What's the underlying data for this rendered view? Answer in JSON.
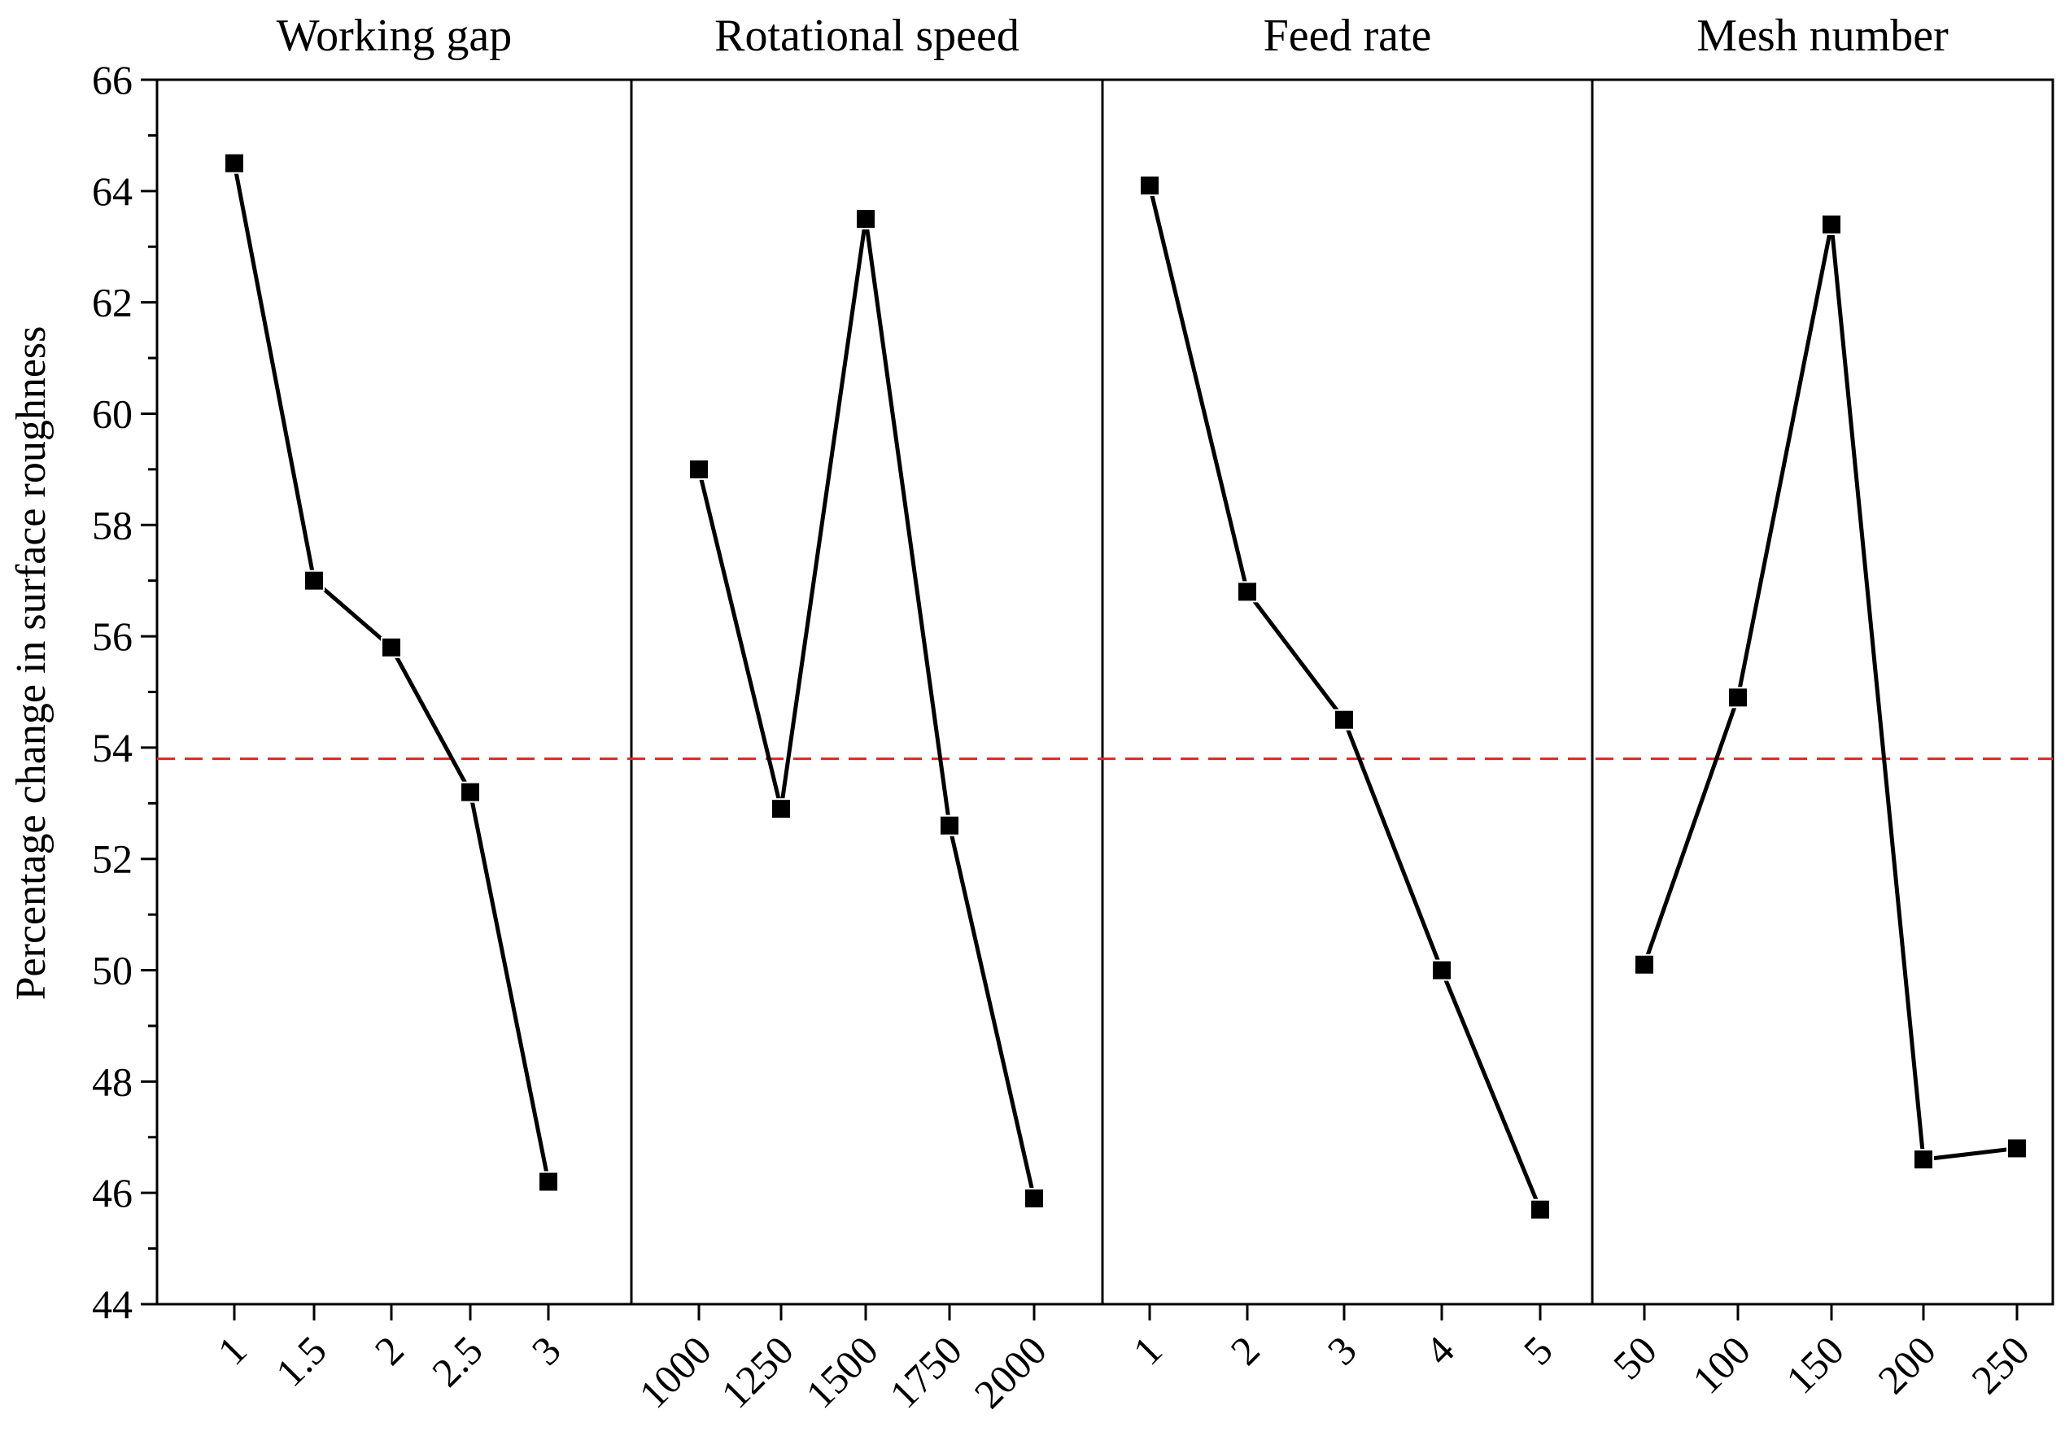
{
  "chart_data": {
    "type": "line",
    "ylabel": "Percentage change in surface roughness",
    "ylim": [
      44,
      66
    ],
    "yticks": [
      44,
      46,
      48,
      50,
      52,
      54,
      56,
      58,
      60,
      62,
      64,
      66
    ],
    "reference_line": {
      "value": 53.8,
      "style": "dashed",
      "color": "#e8231e"
    },
    "marker": "square",
    "line_color": "#000000",
    "panels": [
      {
        "title": "Working gap",
        "categories": [
          "1",
          "1.5",
          "2",
          "2.5",
          "3"
        ],
        "values": [
          64.5,
          57.0,
          55.8,
          53.2,
          46.2
        ]
      },
      {
        "title": "Rotational speed",
        "categories": [
          "1000",
          "1250",
          "1500",
          "1750",
          "2000"
        ],
        "values": [
          59.0,
          52.9,
          63.5,
          52.6,
          45.9
        ]
      },
      {
        "title": "Feed rate",
        "categories": [
          "1",
          "2",
          "3",
          "4",
          "5"
        ],
        "values": [
          64.1,
          56.8,
          54.5,
          50.0,
          45.7
        ]
      },
      {
        "title": "Mesh number",
        "categories": [
          "50",
          "100",
          "150",
          "200",
          "250"
        ],
        "values": [
          50.1,
          54.9,
          63.4,
          46.6,
          46.8
        ]
      }
    ]
  }
}
